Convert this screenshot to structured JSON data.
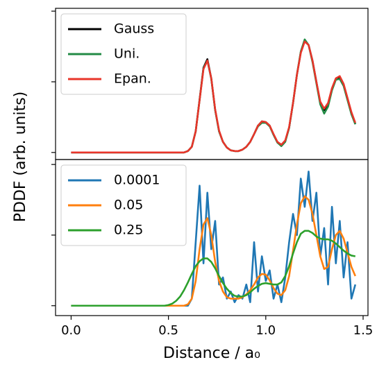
{
  "chart_data": [
    {
      "type": "line",
      "ylabel": "PDDF (arb. units)",
      "legend": "upper left",
      "xlim": [
        -0.08,
        1.525
      ],
      "ylim": [
        -0.1,
        2.04
      ],
      "yticks": [
        0,
        1,
        2
      ],
      "x": [
        0,
        0.02,
        0.04,
        0.06,
        0.08,
        0.1,
        0.12,
        0.14,
        0.16,
        0.18,
        0.2,
        0.22,
        0.24,
        0.26,
        0.28,
        0.3,
        0.32,
        0.34,
        0.36,
        0.38,
        0.4,
        0.42,
        0.44,
        0.46,
        0.48,
        0.5,
        0.52,
        0.54,
        0.56,
        0.58,
        0.6,
        0.62,
        0.64,
        0.66,
        0.68,
        0.7,
        0.72,
        0.74,
        0.76,
        0.78,
        0.8,
        0.82,
        0.84,
        0.86,
        0.88,
        0.9,
        0.92,
        0.94,
        0.96,
        0.98,
        1,
        1.02,
        1.04,
        1.06,
        1.08,
        1.1,
        1.12,
        1.14,
        1.16,
        1.18,
        1.2,
        1.22,
        1.24,
        1.26,
        1.28,
        1.3,
        1.32,
        1.34,
        1.36,
        1.38,
        1.4,
        1.42,
        1.44,
        1.46
      ],
      "series": [
        {
          "name": "Gauss",
          "color": "#000000",
          "values": [
            0,
            0,
            0,
            0,
            0,
            0,
            0,
            0,
            0,
            0,
            0,
            0,
            0,
            0,
            0,
            0,
            0,
            0,
            0,
            0,
            0,
            0,
            0,
            0,
            0,
            0,
            0,
            0,
            0,
            0,
            0.02,
            0.08,
            0.3,
            0.75,
            1.2,
            1.32,
            1.05,
            0.6,
            0.3,
            0.15,
            0.07,
            0.03,
            0.02,
            0.02,
            0.04,
            0.08,
            0.15,
            0.26,
            0.38,
            0.44,
            0.43,
            0.38,
            0.25,
            0.14,
            0.1,
            0.16,
            0.35,
            0.7,
            1.1,
            1.42,
            1.58,
            1.52,
            1.3,
            1.0,
            0.7,
            0.6,
            0.68,
            0.9,
            1.04,
            1.06,
            0.95,
            0.75,
            0.55,
            0.4
          ]
        },
        {
          "name": "Uni.",
          "color": "#238b45",
          "values": [
            0,
            0,
            0,
            0,
            0,
            0,
            0,
            0,
            0,
            0,
            0,
            0,
            0,
            0,
            0,
            0,
            0,
            0,
            0,
            0,
            0,
            0,
            0,
            0,
            0,
            0,
            0,
            0,
            0,
            0,
            0.02,
            0.08,
            0.3,
            0.74,
            1.19,
            1.3,
            1.04,
            0.6,
            0.3,
            0.15,
            0.07,
            0.03,
            0.02,
            0.02,
            0.04,
            0.08,
            0.15,
            0.26,
            0.37,
            0.42,
            0.42,
            0.37,
            0.25,
            0.14,
            0.09,
            0.15,
            0.35,
            0.7,
            1.1,
            1.43,
            1.6,
            1.52,
            1.28,
            0.98,
            0.68,
            0.55,
            0.65,
            0.88,
            1.03,
            1.04,
            0.94,
            0.74,
            0.54,
            0.4
          ]
        },
        {
          "name": "Epan.",
          "color": "#e8352a",
          "values": [
            0,
            0,
            0,
            0,
            0,
            0,
            0,
            0,
            0,
            0,
            0,
            0,
            0,
            0,
            0,
            0,
            0,
            0,
            0,
            0,
            0,
            0,
            0,
            0,
            0,
            0,
            0,
            0,
            0,
            0,
            0.02,
            0.08,
            0.3,
            0.74,
            1.18,
            1.3,
            1.05,
            0.61,
            0.31,
            0.15,
            0.07,
            0.03,
            0.02,
            0.02,
            0.04,
            0.08,
            0.15,
            0.26,
            0.38,
            0.44,
            0.43,
            0.38,
            0.26,
            0.15,
            0.11,
            0.17,
            0.36,
            0.7,
            1.1,
            1.41,
            1.57,
            1.52,
            1.3,
            1.0,
            0.72,
            0.62,
            0.7,
            0.91,
            1.05,
            1.08,
            0.97,
            0.77,
            0.57,
            0.42
          ]
        }
      ]
    },
    {
      "type": "line",
      "xlabel": "Distance / a₀",
      "legend": "upper left",
      "xlim": [
        -0.08,
        1.525
      ],
      "ylim": [
        -0.14,
        2.07
      ],
      "yticks": [
        0,
        1,
        2
      ],
      "xticks": [
        {
          "value": 0,
          "label": "0.0"
        },
        {
          "value": 0.5,
          "label": "0.5"
        },
        {
          "value": 1,
          "label": "1.0"
        },
        {
          "value": 1.5,
          "label": "1.5"
        }
      ],
      "x": [
        0,
        0.02,
        0.04,
        0.06,
        0.08,
        0.1,
        0.12,
        0.14,
        0.16,
        0.18,
        0.2,
        0.22,
        0.24,
        0.26,
        0.28,
        0.3,
        0.32,
        0.34,
        0.36,
        0.38,
        0.4,
        0.42,
        0.44,
        0.46,
        0.48,
        0.5,
        0.52,
        0.54,
        0.56,
        0.58,
        0.6,
        0.62,
        0.64,
        0.66,
        0.68,
        0.7,
        0.72,
        0.74,
        0.76,
        0.78,
        0.8,
        0.82,
        0.84,
        0.86,
        0.88,
        0.9,
        0.92,
        0.94,
        0.96,
        0.98,
        1,
        1.02,
        1.04,
        1.06,
        1.08,
        1.1,
        1.12,
        1.14,
        1.16,
        1.18,
        1.2,
        1.22,
        1.24,
        1.26,
        1.28,
        1.3,
        1.32,
        1.34,
        1.36,
        1.38,
        1.4,
        1.42,
        1.44,
        1.46
      ],
      "series": [
        {
          "name": "0.0001",
          "color": "#1f77b4",
          "values": [
            0,
            0,
            0,
            0,
            0,
            0,
            0,
            0,
            0,
            0,
            0,
            0,
            0,
            0,
            0,
            0,
            0,
            0,
            0,
            0,
            0,
            0,
            0,
            0,
            0,
            0,
            0,
            0,
            0,
            0,
            0,
            0.1,
            0.9,
            1.7,
            0.6,
            1.6,
            0.8,
            1.2,
            0.3,
            0.4,
            0.1,
            0.2,
            0.05,
            0.15,
            0.1,
            0.3,
            0.05,
            0.9,
            0.2,
            0.7,
            0.35,
            0.5,
            0.1,
            0.3,
            0.05,
            0.4,
            0.9,
            1.3,
            1.0,
            1.8,
            1.4,
            1.9,
            1.2,
            1.6,
            0.7,
            1.1,
            0.3,
            1.4,
            0.6,
            1.2,
            0.4,
            0.9,
            0.1,
            0.3
          ]
        },
        {
          "name": "0.05",
          "color": "#ff7f0e",
          "values": [
            0,
            0,
            0,
            0,
            0,
            0,
            0,
            0,
            0,
            0,
            0,
            0,
            0,
            0,
            0,
            0,
            0,
            0,
            0,
            0,
            0,
            0,
            0,
            0,
            0,
            0,
            0,
            0,
            0,
            0,
            0.02,
            0.1,
            0.35,
            0.8,
            1.15,
            1.24,
            1.0,
            0.62,
            0.35,
            0.2,
            0.12,
            0.1,
            0.1,
            0.1,
            0.12,
            0.16,
            0.22,
            0.3,
            0.4,
            0.45,
            0.44,
            0.36,
            0.25,
            0.17,
            0.15,
            0.22,
            0.42,
            0.78,
            1.15,
            1.45,
            1.55,
            1.5,
            1.3,
            1.0,
            0.7,
            0.52,
            0.55,
            0.8,
            1.0,
            1.06,
            0.95,
            0.75,
            0.55,
            0.42
          ]
        },
        {
          "name": "0.25",
          "color": "#2ca02c",
          "values": [
            0,
            0,
            0,
            0,
            0,
            0,
            0,
            0,
            0,
            0,
            0,
            0,
            0,
            0,
            0,
            0,
            0,
            0,
            0,
            0,
            0,
            0,
            0,
            0,
            0,
            0.01,
            0.03,
            0.07,
            0.13,
            0.22,
            0.33,
            0.45,
            0.56,
            0.63,
            0.67,
            0.67,
            0.62,
            0.53,
            0.42,
            0.32,
            0.24,
            0.18,
            0.14,
            0.13,
            0.13,
            0.15,
            0.19,
            0.24,
            0.28,
            0.31,
            0.32,
            0.31,
            0.3,
            0.3,
            0.33,
            0.42,
            0.56,
            0.74,
            0.9,
            1.02,
            1.06,
            1.06,
            1.03,
            0.98,
            0.95,
            0.94,
            0.94,
            0.92,
            0.88,
            0.83,
            0.78,
            0.74,
            0.71,
            0.7
          ]
        }
      ]
    }
  ]
}
